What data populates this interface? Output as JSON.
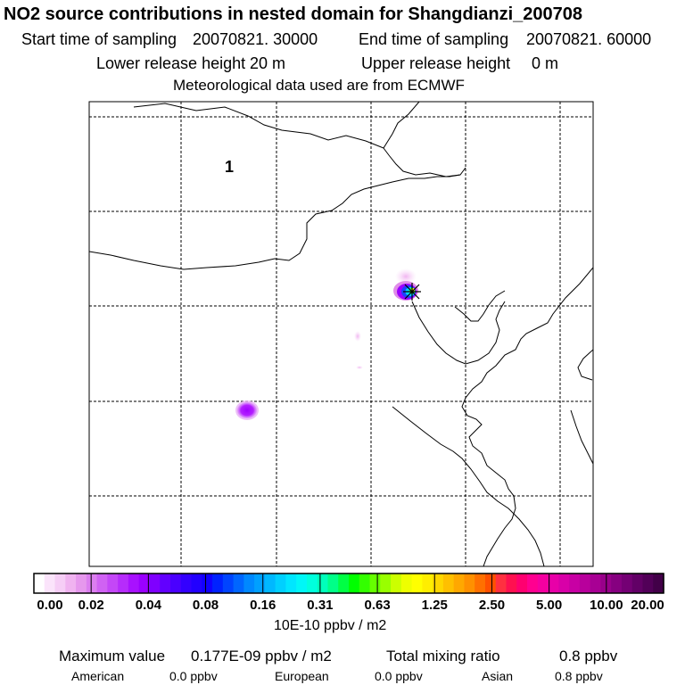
{
  "header": {
    "title": "NO2 source contributions in nested domain for Shangdianzi_200708",
    "start_label": "Start time of sampling",
    "start_value": "20070821. 30000",
    "end_label": "End time of sampling",
    "end_value": "20070821. 60000",
    "lower_label": "Lower release height",
    "lower_value": "20 m",
    "upper_label": "Upper release height",
    "upper_value": "0 m",
    "met_line": "Meteorological data used are from ECMWF"
  },
  "map": {
    "region_label": "1",
    "station_marker": "station-cross-icon",
    "plume_colors": {
      "faint": "#f4c6f4",
      "light": "#e98ce9",
      "mid": "#b300ff",
      "deep": "#9900ff",
      "blue": "#1f3fff",
      "cyan": "#00d4ff",
      "green": "#33ff33",
      "yellow": "#ffff00"
    }
  },
  "colorbar": {
    "tick_labels": [
      "0.00",
      "0.02",
      "0.04",
      "0.08",
      "0.16",
      "0.31",
      "0.63",
      "1.25",
      "2.50",
      "5.00",
      "10.00",
      "20.00"
    ],
    "colors": [
      "#ffffff",
      "#fbe4fb",
      "#f6cef6",
      "#f0b3f0",
      "#e698ed",
      "#dc7ef0",
      "#d062f3",
      "#c447f7",
      "#b62cfb",
      "#a811ff",
      "#9a00ff",
      "#7f00ff",
      "#6200ff",
      "#4a00ff",
      "#3300ff",
      "#2200ff",
      "#1100ff",
      "#0022ff",
      "#0044ff",
      "#0066ff",
      "#0088ff",
      "#00a0ff",
      "#00b8ff",
      "#00d0ff",
      "#00e6ff",
      "#00f7f7",
      "#00ffdd",
      "#00ffbb",
      "#00ff88",
      "#00ff44",
      "#00ff00",
      "#33ff00",
      "#66ff00",
      "#99ff00",
      "#ccff00",
      "#eeff00",
      "#ffff00",
      "#ffee00",
      "#ffd700",
      "#ffc000",
      "#ffa800",
      "#ff9000",
      "#ff7000",
      "#ff5000",
      "#ff3040",
      "#ff1050",
      "#ff0070",
      "#ff0090",
      "#f500a0",
      "#e800a8",
      "#d800a8",
      "#c800a4",
      "#b8009c",
      "#a80094",
      "#98008a",
      "#860080",
      "#740074",
      "#620066",
      "#520058",
      "#420048"
    ],
    "unit": "10E-10 ppbv / m2"
  },
  "footer": {
    "max_label": "Maximum value",
    "max_value": "0.177E-09 ppbv / m2",
    "total_label": "Total mixing ratio",
    "total_value": "0.8 ppbv",
    "sources": [
      {
        "name": "American",
        "value": "0.0 ppbv"
      },
      {
        "name": "European",
        "value": "0.0 ppbv"
      },
      {
        "name": "Asian",
        "value": "0.8 ppbv"
      }
    ]
  }
}
